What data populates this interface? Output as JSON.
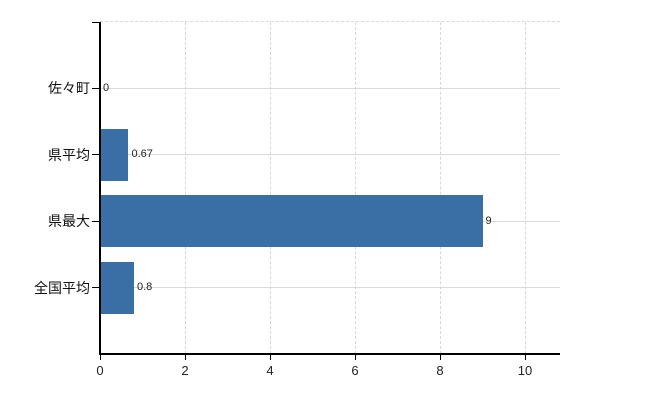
{
  "chart_data": {
    "type": "bar",
    "orientation": "horizontal",
    "title": "",
    "xlabel": "",
    "ylabel": "",
    "categories": [
      "佐々町",
      "県平均",
      "県最大",
      "全国平均"
    ],
    "values": [
      0,
      0.67,
      9,
      0.8
    ],
    "value_labels": [
      "0",
      "0.67",
      "9",
      "0.8"
    ],
    "x_ticks": [
      0,
      2,
      4,
      6,
      8,
      10
    ],
    "x_tick_labels": [
      "0",
      "2",
      "4",
      "6",
      "8",
      "10"
    ],
    "xlim": [
      0,
      10.8
    ],
    "grid": true,
    "legend": false,
    "bar_color": "#3a6fa6",
    "gridline_h_color": "#d6ded6",
    "gridline_v_color": "#d9d6d9",
    "axis_color": "#000000",
    "background_color": "#ffffff"
  }
}
